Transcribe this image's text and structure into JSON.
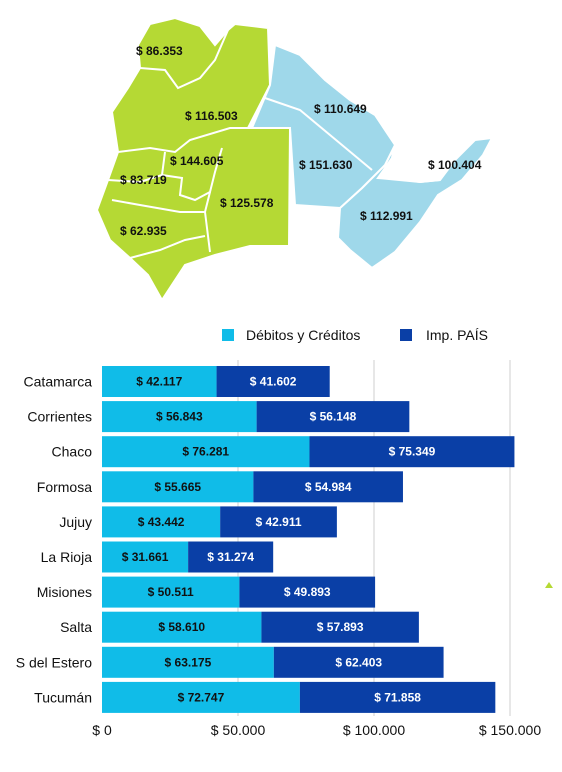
{
  "colors": {
    "map_green": "#b5d934",
    "map_blue": "#9fd8ea",
    "debitos": "#10bce8",
    "impais": "#0a3fa6",
    "grid": "#cfcfcf"
  },
  "map": {
    "regions": [
      {
        "id": "catamarca",
        "label": "$ 86.353",
        "group": "green"
      },
      {
        "id": "salta",
        "label": "$ 116.503",
        "group": "green"
      },
      {
        "id": "tucuman",
        "label": "$ 144.605",
        "group": "green"
      },
      {
        "id": "catamarca-west",
        "label": "$ 83.719",
        "group": "green"
      },
      {
        "id": "santiago",
        "label": "$ 125.578",
        "group": "green"
      },
      {
        "id": "la-rioja",
        "label": "$ 62.935",
        "group": "green"
      },
      {
        "id": "formosa",
        "label": "$ 110.649",
        "group": "blue"
      },
      {
        "id": "chaco",
        "label": "$ 151.630",
        "group": "blue"
      },
      {
        "id": "misiones",
        "label": "$ 100.404",
        "group": "blue"
      },
      {
        "id": "corrientes",
        "label": "$ 112.991",
        "group": "blue"
      }
    ]
  },
  "chart_data": {
    "type": "bar",
    "stacked": true,
    "orientation": "horizontal",
    "categories": [
      "Catamarca",
      "Corrientes",
      "Chaco",
      "Formosa",
      "Jujuy",
      "La Rioja",
      "Misiones",
      "Salta",
      "S del Estero",
      "Tucumán"
    ],
    "series": [
      {
        "name": "Débitos y Créditos",
        "values": [
          42117,
          56843,
          76281,
          55665,
          43442,
          31661,
          50511,
          58610,
          63175,
          72747
        ],
        "labels": [
          "$ 42.117",
          "$ 56.843",
          "$ 76.281",
          "$ 55.665",
          "$ 43.442",
          "$ 31.661",
          "$ 50.511",
          "$ 58.610",
          "$ 63.175",
          "$ 72.747"
        ],
        "color": "#10bce8",
        "label_color": "#111111"
      },
      {
        "name": "Imp. PAÍS",
        "values": [
          41602,
          56148,
          75349,
          54984,
          42911,
          31274,
          49893,
          57893,
          62403,
          71858
        ],
        "labels": [
          "$ 41.602",
          "$ 56.148",
          "$ 75.349",
          "$ 54.984",
          "$ 42.911",
          "$ 31.274",
          "$ 49.893",
          "$ 57.893",
          "$ 62.403",
          "$ 71.858"
        ],
        "color": "#0a3fa6",
        "label_color": "#ffffff"
      }
    ],
    "xlim": [
      0,
      150000
    ],
    "xticks": [
      0,
      50000,
      100000,
      150000
    ],
    "xtick_labels": [
      "$ 0",
      "$ 50.000",
      "$ 100.000",
      "$ 150.000"
    ],
    "grid": true,
    "legend": "top-right"
  }
}
